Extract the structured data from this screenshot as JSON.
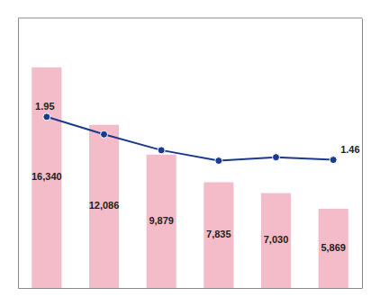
{
  "chart_data": {
    "type": "bar",
    "categories": [
      null,
      null,
      null,
      null,
      null,
      null
    ],
    "series": [
      {
        "type": "bar",
        "color": "#f4bcc8",
        "values": [
          16340,
          12086,
          9879,
          7835,
          7030,
          5869
        ],
        "value_labels": [
          "16,340",
          "12,086",
          "9,879",
          "7,835",
          "7,030",
          "5,869"
        ]
      },
      {
        "type": "line",
        "axis": "y2",
        "color": "#1a3a8f",
        "marker": "circle",
        "values": [
          1.95,
          1.75,
          1.57,
          1.45,
          1.49,
          1.46
        ],
        "value_labels": [
          "1.95",
          null,
          null,
          null,
          null,
          "1.46"
        ]
      }
    ],
    "ylim": [
      0,
      20000
    ],
    "y2lim": [
      0.0,
      3.076
    ],
    "data_labels": true,
    "tick_labels": false
  }
}
